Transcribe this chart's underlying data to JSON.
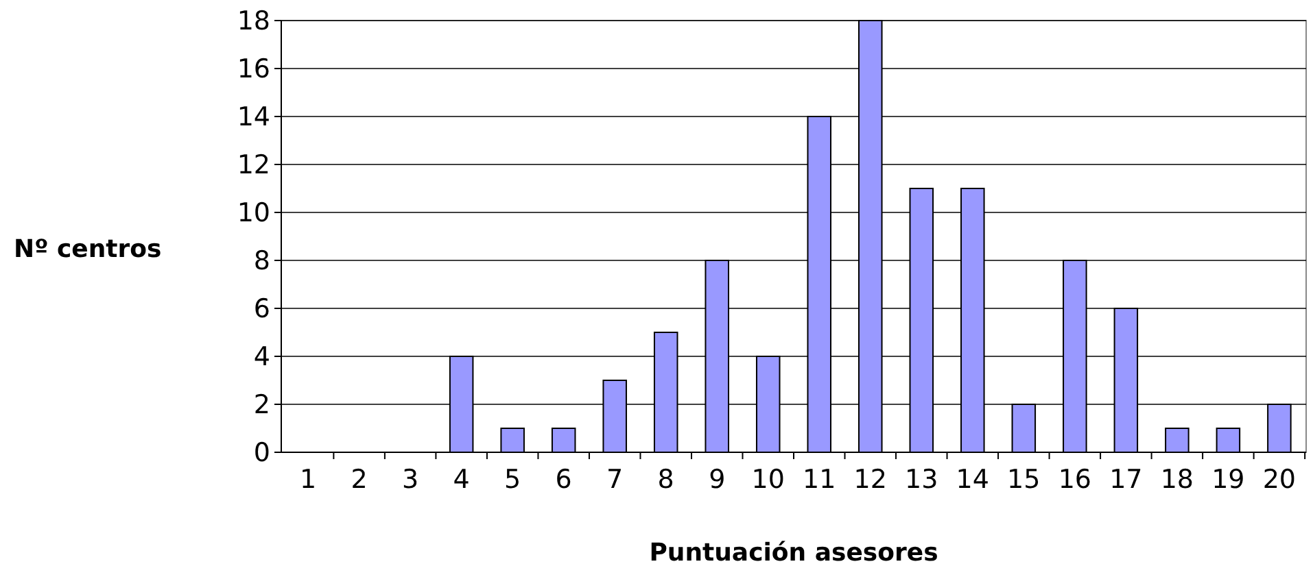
{
  "chart_data": {
    "type": "bar",
    "xlabel": "Puntuación asesores",
    "ylabel": "Nº centros",
    "categories": [
      "1",
      "2",
      "3",
      "4",
      "5",
      "6",
      "7",
      "8",
      "9",
      "10",
      "11",
      "12",
      "13",
      "14",
      "15",
      "16",
      "17",
      "18",
      "19",
      "20"
    ],
    "values": [
      0,
      0,
      0,
      4,
      1,
      1,
      3,
      5,
      8,
      4,
      14,
      18,
      11,
      11,
      2,
      8,
      6,
      1,
      1,
      2
    ],
    "color": "#9999ff",
    "ylim": [
      0,
      18
    ],
    "yticks": [
      0,
      2,
      4,
      6,
      8,
      10,
      12,
      14,
      16,
      18
    ],
    "grid": "y"
  }
}
